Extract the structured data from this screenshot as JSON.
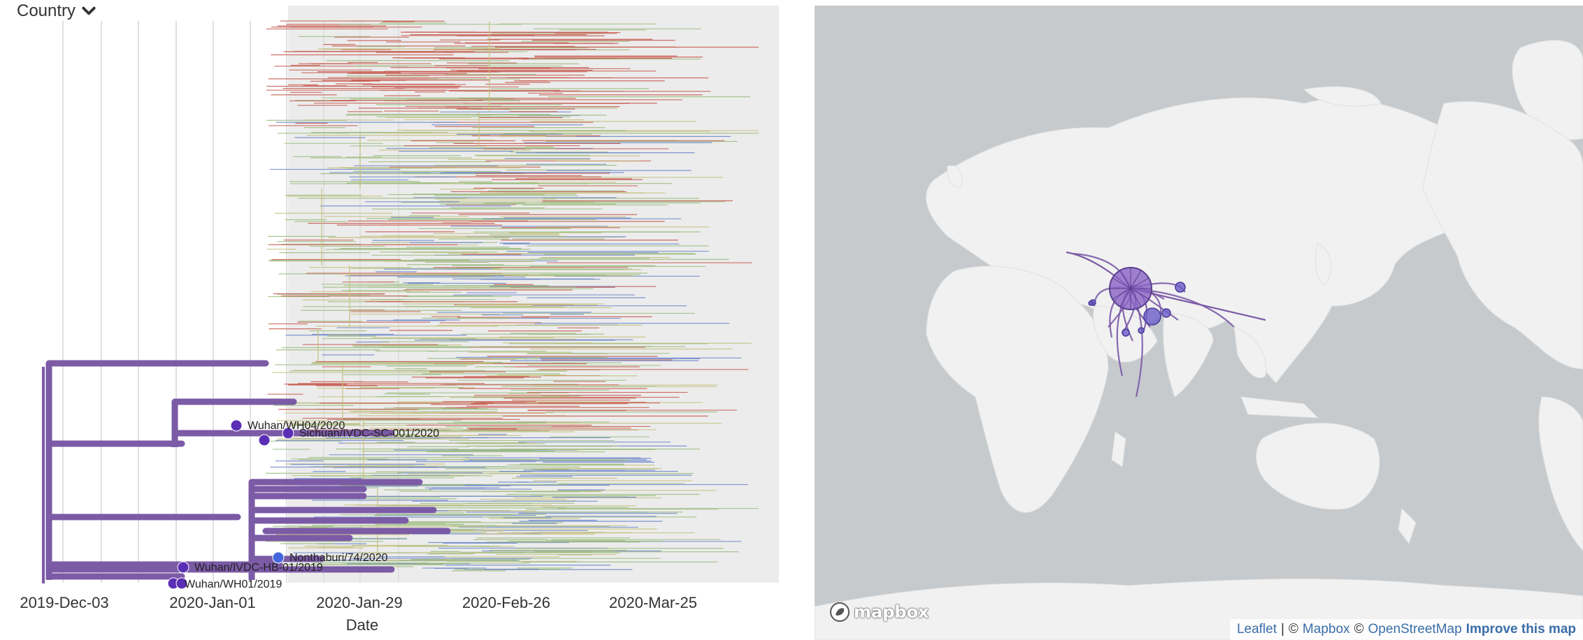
{
  "tree": {
    "color_by_label": "Country",
    "x_axis_label": "Date",
    "x_ticks": [
      "2019-Dec-03",
      "2020-Jan-01",
      "2020-Jan-29",
      "2020-Feb-26",
      "2020-Mar-25"
    ],
    "tip_labels": [
      "Wuhan/WH04/2020",
      "Sichuan/IVDC-SC-001/2020",
      "Nonthaburi/74/2020",
      "Wuhan/IVDC-HB-01/2019",
      "Wuhan/WH01/2019"
    ],
    "colors": {
      "root_lineage": "#7b5aa6",
      "tip_purple": "#5b2fb5",
      "tip_blue": "#4466dd",
      "red": "#c75a4e",
      "green": "#9dbd80",
      "olive": "#c5c07f",
      "blue": "#6b87c9",
      "shade": "#ececec"
    }
  },
  "map": {
    "logo_text": "mapbox",
    "attribution": {
      "leaflet": "Leaflet",
      "separator": "|",
      "copyright1": "©",
      "mapbox": "Mapbox",
      "copyright2": "©",
      "osm": "OpenStreetMap",
      "improve": "Improve this map"
    },
    "colors": {
      "ocean": "#c6cacd",
      "land": "#f1f1f1",
      "transmission": "#7b5aa6",
      "china_bubble": "#8a63c6"
    }
  }
}
